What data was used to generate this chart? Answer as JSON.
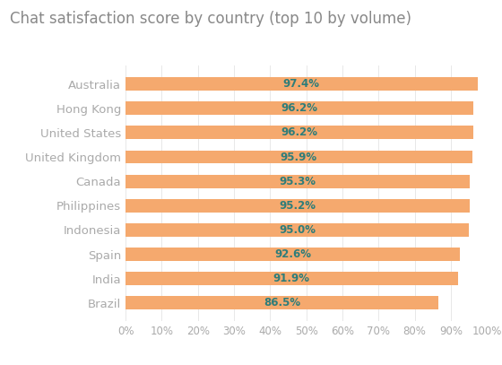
{
  "title": "Chat satisfaction score by country (top 10 by volume)",
  "categories": [
    "Australia",
    "Hong Kong",
    "United States",
    "United Kingdom",
    "Canada",
    "Philippines",
    "Indonesia",
    "Spain",
    "India",
    "Brazil"
  ],
  "values": [
    97.4,
    96.2,
    96.2,
    95.9,
    95.3,
    95.2,
    95.0,
    92.6,
    91.9,
    86.5
  ],
  "labels": [
    "97.4%",
    "96.2%",
    "96.2%",
    "95.9%",
    "95.3%",
    "95.2%",
    "95.0%",
    "92.6%",
    "91.9%",
    "86.5%"
  ],
  "bar_color": "#F5A96E",
  "label_color": "#2e7d7a",
  "title_color": "#888888",
  "background_color": "#ffffff",
  "axis_label_color": "#aaaaaa",
  "xlim": [
    0,
    100
  ],
  "xticks": [
    0,
    10,
    20,
    30,
    40,
    50,
    60,
    70,
    80,
    90,
    100
  ],
  "xtick_labels": [
    "0%",
    "10%",
    "20%",
    "30%",
    "40%",
    "50%",
    "60%",
    "70%",
    "80%",
    "90%",
    "100%"
  ],
  "title_fontsize": 12,
  "bar_label_fontsize": 8.5,
  "ytick_fontsize": 9.5,
  "xtick_fontsize": 8.5,
  "bar_height": 0.55
}
